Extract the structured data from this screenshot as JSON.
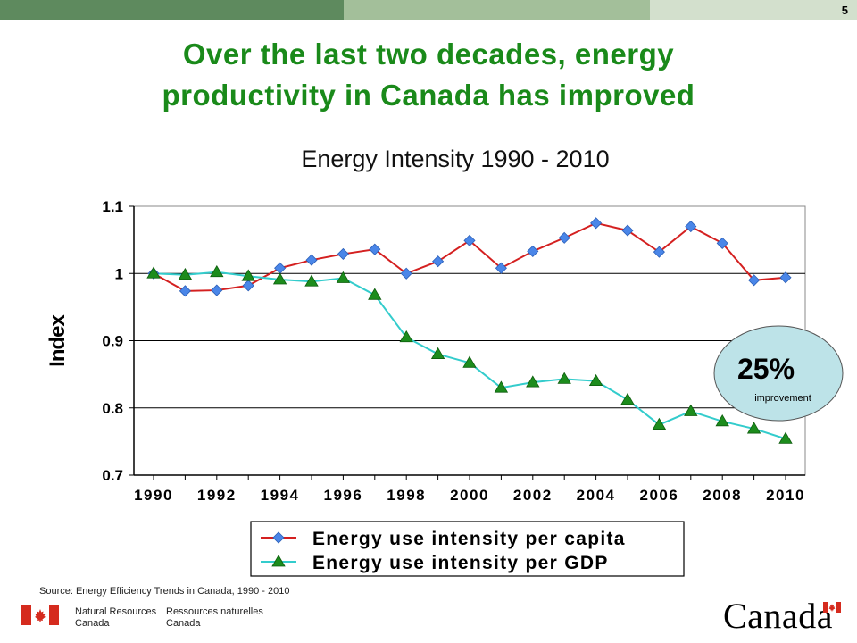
{
  "slide_number": "5",
  "slide_title_line1": "Over the last two decades, energy",
  "slide_title_line2": "productivity in Canada has improved",
  "source": "Source: Energy Efficiency Trends in Canada, 1990 - 2010",
  "footer": {
    "dept_en_line1": "Natural Resources",
    "dept_en_line2": "Canada",
    "dept_fr_line1": "Ressources naturelles",
    "dept_fr_line2": "Canada",
    "wordmark": "Canada"
  },
  "colors": {
    "title_green": "#1a8a1a",
    "series_capita_line": "#d42020",
    "series_capita_marker": "#4a86e8",
    "series_gdp_line": "#33cccc",
    "series_gdp_marker": "#1c8c1c",
    "callout_fill": "#bde3e8",
    "flag_red": "#d52b1e"
  },
  "chart_data": {
    "type": "line",
    "title": "Energy Intensity 1990 - 2010",
    "ylabel": "Index",
    "xlabel": "",
    "x": [
      1990,
      1991,
      1992,
      1993,
      1994,
      1995,
      1996,
      1997,
      1998,
      1999,
      2000,
      2001,
      2002,
      2003,
      2004,
      2005,
      2006,
      2007,
      2008,
      2009,
      2010
    ],
    "x_ticks": [
      "1990",
      "1992",
      "1994",
      "1996",
      "1998",
      "2000",
      "2002",
      "2004",
      "2006",
      "2008",
      "2010"
    ],
    "y_ticks": [
      "0.7",
      "0.8",
      "0.9",
      "1",
      "1.1"
    ],
    "ylim": [
      0.7,
      1.1
    ],
    "grid": "horizontal",
    "legend_position": "bottom",
    "series": [
      {
        "name": "Energy use intensity per capita",
        "marker": "diamond",
        "values": [
          1.0,
          0.974,
          0.975,
          0.982,
          1.008,
          1.02,
          1.029,
          1.036,
          1.0,
          1.018,
          1.049,
          1.008,
          1.033,
          1.053,
          1.075,
          1.064,
          1.032,
          1.07,
          1.045,
          0.99,
          0.994
        ]
      },
      {
        "name": "Energy use intensity per GDP",
        "marker": "triangle",
        "values": [
          1.0,
          0.998,
          1.002,
          0.996,
          0.991,
          0.988,
          0.993,
          0.968,
          0.905,
          0.88,
          0.867,
          0.83,
          0.838,
          0.843,
          0.84,
          0.812,
          0.775,
          0.795,
          0.78,
          0.769,
          0.754
        ]
      }
    ],
    "annotation": {
      "value": "25%",
      "text": "improvement"
    }
  }
}
